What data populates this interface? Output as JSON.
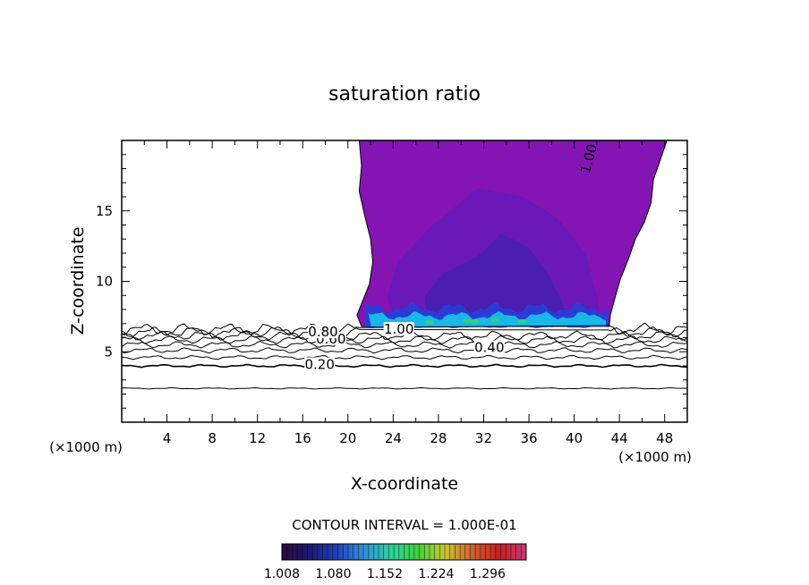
{
  "chart_data": {
    "type": "contour",
    "title": "saturation ratio",
    "xlabel": "X-coordinate",
    "ylabel": "Z-coordinate",
    "x_unit": "(×1000 m)",
    "xlim": [
      0,
      50
    ],
    "ylim": [
      0,
      20
    ],
    "x_ticks": [
      4,
      8,
      12,
      16,
      20,
      24,
      28,
      32,
      36,
      40,
      44,
      48
    ],
    "y_ticks": [
      5,
      10,
      15
    ],
    "contour_interval_text": "CONTOUR INTERVAL = 1.000E-01",
    "contour_labels": [
      {
        "text": "0.20",
        "x": 17.5,
        "y": 4.1
      },
      {
        "text": "0.40",
        "x": 32.5,
        "y": 5.3
      },
      {
        "text": "0.60",
        "x": 18.5,
        "y": 5.9
      },
      {
        "text": "0.80",
        "x": 17.8,
        "y": 6.4
      },
      {
        "text": "1.00",
        "x": 24.5,
        "y": 6.6
      },
      {
        "text": "1.00",
        "x": 41.3,
        "y": 18.7
      }
    ],
    "colorbar": {
      "tick_labels": [
        "1.008",
        "1.080",
        "1.152",
        "1.224",
        "1.296"
      ],
      "range": [
        1.008,
        1.35
      ],
      "colormap": [
        "#2a0a3a",
        "#1c1a70",
        "#2040b8",
        "#2f8fd8",
        "#2ed0a0",
        "#40d040",
        "#c8c830",
        "#d06030",
        "#c82020",
        "#c83878"
      ]
    },
    "fill_colors": {
      "outer_region": "#8414b4",
      "inner_region": "#6a18b8",
      "core_region": "#4a1eb0",
      "base_band": "#2a3cd4",
      "cyan_band": "#18b8e8",
      "green_spots": "#30d080"
    },
    "contour_levels_below_cloud": [
      {
        "level": 0.1,
        "z": 2.4
      },
      {
        "level": 0.2,
        "z": 4.0
      },
      {
        "level": 0.3,
        "z": 4.6
      },
      {
        "level": 0.4,
        "z": 5.1
      },
      {
        "level": 0.5,
        "z": 5.5
      },
      {
        "level": 0.6,
        "z": 5.85
      },
      {
        "level": 0.7,
        "z": 6.15
      },
      {
        "level": 0.8,
        "z": 6.4
      },
      {
        "level": 0.9,
        "z": 6.6
      }
    ]
  }
}
